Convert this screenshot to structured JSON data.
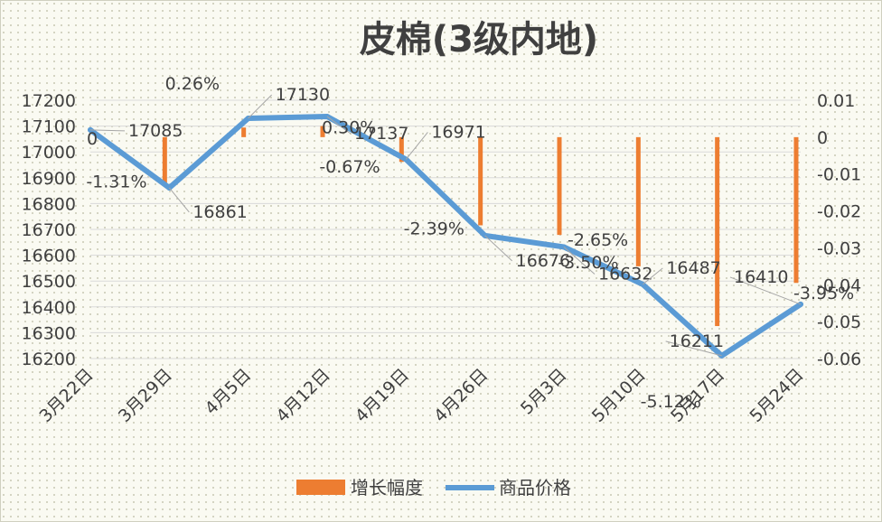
{
  "chart_data": {
    "type": "bar+line",
    "title": "皮棉(3级内地)",
    "categories": [
      "3月22日",
      "3月29日",
      "4月5日",
      "4月12日",
      "4月19日",
      "4月26日",
      "5月3日",
      "5月10日",
      "5月17日",
      "5月24日"
    ],
    "series": [
      {
        "name": "增长幅度",
        "type": "bar",
        "axis": "right",
        "values": [
          0,
          -0.0131,
          0.0026,
          0.003,
          -0.0067,
          -0.0239,
          -0.0265,
          -0.035,
          -0.0512,
          -0.0395
        ],
        "labels": [
          "0",
          "-1.31%",
          "0.26%",
          "0.30%",
          "-0.67%",
          "-2.39%",
          "-2.65%",
          "-3.50%",
          "-5.12%",
          "-3.95%"
        ],
        "color": "#ed7d31"
      },
      {
        "name": "商品价格",
        "type": "line",
        "axis": "left",
        "values": [
          17085,
          16861,
          17130,
          17137,
          16971,
          16676,
          16632,
          16487,
          16211,
          16410
        ],
        "labels": [
          "17085",
          "16861",
          "17130",
          "17137",
          "16971",
          "16676",
          "16632",
          "16487",
          "16211",
          "16410"
        ],
        "color": "#5b9bd5"
      }
    ],
    "y_left": {
      "min": 16200,
      "max": 17200,
      "ticks": [
        "16200",
        "16300",
        "16400",
        "16500",
        "16600",
        "16700",
        "16800",
        "16900",
        "17000",
        "17100",
        "17200"
      ]
    },
    "y_right": {
      "min": -0.06,
      "max": 0.01,
      "ticks": [
        "0.01",
        "0",
        "-0.01",
        "-0.02",
        "-0.03",
        "-0.04",
        "-0.05",
        "-0.06"
      ]
    },
    "legend": "bottom",
    "grid": true
  }
}
